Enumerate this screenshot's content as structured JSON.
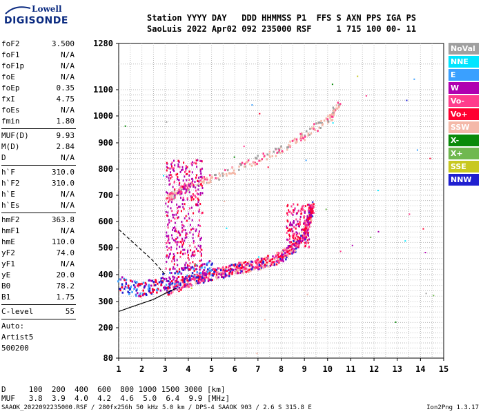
{
  "logo": {
    "top": "Lowell",
    "bottom": "DIGISONDE"
  },
  "header": {
    "line1": "Station YYYY DAY   DDD HHMMSS P1  FFS S AXN PPS IGA PS",
    "line2": "SaoLuis 2022 Apr02 092 235000 RSF     1 715 100 00- 11"
  },
  "parameters": {
    "group1": [
      {
        "label": "foF2",
        "value": "3.500"
      },
      {
        "label": "foF1",
        "value": "N/A"
      },
      {
        "label": "foF1p",
        "value": "N/A"
      },
      {
        "label": "foE",
        "value": "N/A"
      },
      {
        "label": "foEp",
        "value": "0.35"
      },
      {
        "label": "fxI",
        "value": "4.75"
      },
      {
        "label": "foEs",
        "value": "N/A"
      },
      {
        "label": "fmin",
        "value": "1.80"
      }
    ],
    "group2": [
      {
        "label": "MUF(D)",
        "value": "9.93"
      },
      {
        "label": "M(D)",
        "value": "2.84"
      },
      {
        "label": "D",
        "value": "N/A"
      }
    ],
    "group3": [
      {
        "label": "h`F",
        "value": "310.0"
      },
      {
        "label": "h`F2",
        "value": "310.0"
      },
      {
        "label": "h`E",
        "value": "N/A"
      },
      {
        "label": "h`Es",
        "value": "N/A"
      }
    ],
    "group4": [
      {
        "label": "hmF2",
        "value": "363.8"
      },
      {
        "label": "hmF1",
        "value": "N/A"
      },
      {
        "label": "hmE",
        "value": "110.0"
      },
      {
        "label": "yF2",
        "value": "74.0"
      },
      {
        "label": "yF1",
        "value": "N/A"
      },
      {
        "label": "yE",
        "value": "20.0"
      },
      {
        "label": "B0",
        "value": "78.2"
      },
      {
        "label": "B1",
        "value": "1.75"
      }
    ],
    "group5": [
      {
        "label": "C-level",
        "value": "55"
      }
    ],
    "auto_lines": [
      "Auto:",
      "Artist5",
      "500200"
    ]
  },
  "legend": [
    {
      "label": "NoVal",
      "color": "#a0a0a0"
    },
    {
      "label": "NNE",
      "color": "#00e5ff"
    },
    {
      "label": "E",
      "color": "#3aa0ff"
    },
    {
      "label": "W",
      "color": "#b000b0"
    },
    {
      "label": "Vo-",
      "color": "#ff3c8c"
    },
    {
      "label": "Vo+",
      "color": "#ff0030"
    },
    {
      "label": "SSW",
      "color": "#f4b8a8"
    },
    {
      "label": "X-",
      "color": "#0a8a0a"
    },
    {
      "label": "X+",
      "color": "#70b850"
    },
    {
      "label": "SSE",
      "color": "#c8c820"
    },
    {
      "label": "NNW",
      "color": "#2020d0"
    }
  ],
  "footer": {
    "d_line": "D     100  200  400  600  800 1000 1500 3000 [km]",
    "muf_line": "MUF   3.8  3.9  4.0  4.2  4.6  5.0  6.4  9.9 [MHz]",
    "file_line": "SAAOK_2022092235000.RSF / 280fx256h 50 kHz 5.0 km / DPS-4 SAAOK 903 / 2.6 S 315.8 E",
    "version": "Ion2Png 1.3.17"
  },
  "chart_data": {
    "type": "scatter",
    "x_ticks": [
      1,
      2,
      3,
      4,
      5,
      6,
      7,
      8,
      9,
      10,
      11,
      12,
      13,
      14,
      15
    ],
    "y_ticks": [
      80,
      200,
      300,
      400,
      500,
      600,
      700,
      800,
      900,
      1000,
      1100,
      1280
    ],
    "xlim": [
      1,
      15
    ],
    "ylim": [
      80,
      1280
    ],
    "grid": true,
    "o_trace_1f": [
      [
        3.0,
        340
      ],
      [
        3.5,
        360
      ],
      [
        4,
        378
      ],
      [
        4.5,
        392
      ],
      [
        5,
        404
      ],
      [
        5.5,
        415
      ],
      [
        6,
        425
      ],
      [
        6.5,
        433
      ],
      [
        7,
        442
      ],
      [
        7.5,
        455
      ],
      [
        8,
        470
      ],
      [
        8.5,
        500
      ],
      [
        9,
        560
      ],
      [
        9.2,
        620
      ],
      [
        9.3,
        660
      ]
    ],
    "x_trace_1f": [
      [
        1.0,
        370
      ],
      [
        1.5,
        355
      ],
      [
        2.0,
        350
      ],
      [
        2.5,
        360
      ],
      [
        3.0,
        380
      ],
      [
        3.5,
        395
      ],
      [
        4,
        410
      ],
      [
        4.5,
        420
      ],
      [
        5,
        430
      ]
    ],
    "o_trace_2f": [
      [
        3.0,
        690
      ],
      [
        3.5,
        715
      ],
      [
        4,
        735
      ],
      [
        5,
        770
      ],
      [
        6,
        800
      ],
      [
        7,
        840
      ],
      [
        8,
        880
      ],
      [
        9,
        930
      ],
      [
        10,
        990
      ],
      [
        10.5,
        1050
      ]
    ],
    "profile_upper": [
      [
        1,
        570
      ],
      [
        1.5,
        530
      ],
      [
        2,
        490
      ],
      [
        2.5,
        450
      ],
      [
        3,
        400
      ]
    ],
    "profile_lower": [
      [
        1,
        262
      ],
      [
        1.5,
        278
      ],
      [
        2,
        293
      ],
      [
        2.5,
        308
      ],
      [
        3,
        330
      ],
      [
        3.5,
        350
      ]
    ]
  }
}
